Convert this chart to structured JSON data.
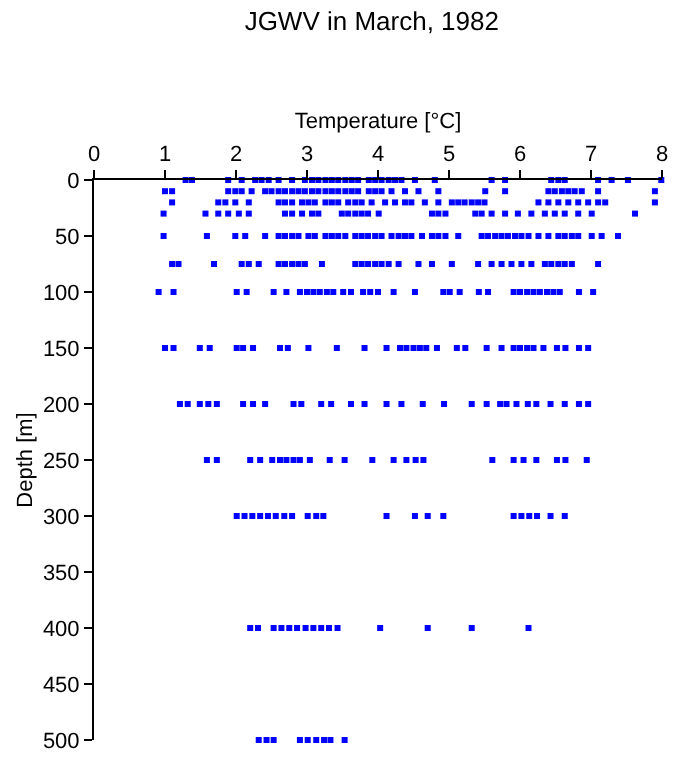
{
  "chart_data": {
    "type": "scatter",
    "title": "JGWV in March, 1982",
    "xlabel": "Temperature [°C]",
    "ylabel": "Depth [m]",
    "xlim": [
      0,
      8
    ],
    "xticks": [
      0,
      1,
      2,
      3,
      4,
      5,
      6,
      7,
      8
    ],
    "ylim": [
      500,
      0
    ],
    "yticks": [
      0,
      50,
      100,
      150,
      200,
      250,
      300,
      350,
      400,
      450,
      500
    ],
    "grid": false,
    "marker": "square",
    "series": [
      {
        "color": "#0000ff",
        "x": [
          1.29,
          1.38,
          1.89,
          2.08,
          2.27,
          2.36,
          2.46,
          2.6,
          2.79,
          2.97,
          3.07,
          3.16,
          3.26,
          3.35,
          3.44,
          3.54,
          3.63,
          3.72,
          3.87,
          3.96,
          4.05,
          4.15,
          4.24,
          4.33,
          4.52,
          4.8,
          5.6,
          5.79,
          6.44,
          6.54,
          6.63,
          7.1,
          7.29,
          7.52,
          7.99
        ],
        "values": [
          0,
          0,
          0,
          0,
          0,
          0,
          0,
          0,
          0,
          0,
          0,
          0,
          0,
          0,
          0,
          0,
          0,
          0,
          0,
          0,
          0,
          0,
          0,
          0,
          0,
          0,
          0,
          0,
          0,
          0,
          0,
          0,
          0,
          0,
          0
        ]
      },
      {
        "color": "#0000ff",
        "x": [
          1.0,
          1.1,
          1.89,
          1.99,
          2.08,
          2.22,
          2.41,
          2.5,
          2.6,
          2.69,
          2.79,
          2.88,
          2.97,
          3.07,
          3.16,
          3.26,
          3.35,
          3.44,
          3.54,
          3.63,
          3.72,
          3.87,
          3.96,
          4.05,
          4.19,
          4.38,
          4.57,
          4.85,
          5.51,
          5.79,
          6.4,
          6.49,
          6.59,
          6.68,
          6.77,
          6.87,
          7.1,
          7.9
        ],
        "values": [
          10,
          10,
          10,
          10,
          10,
          10,
          10,
          10,
          10,
          10,
          10,
          10,
          10,
          10,
          10,
          10,
          10,
          10,
          10,
          10,
          10,
          10,
          10,
          10,
          10,
          10,
          10,
          10,
          10,
          10,
          10,
          10,
          10,
          10,
          10,
          10,
          10,
          10
        ]
      },
      {
        "color": "#0000ff",
        "x": [
          1.1,
          1.75,
          1.85,
          1.99,
          2.18,
          2.6,
          2.69,
          2.79,
          2.93,
          3.02,
          3.11,
          3.26,
          3.35,
          3.44,
          3.58,
          3.68,
          3.77,
          3.91,
          4.1,
          4.24,
          4.38,
          4.47,
          4.66,
          4.85,
          5.04,
          5.13,
          5.22,
          5.32,
          5.41,
          5.5,
          6.26,
          6.4,
          6.54,
          6.68,
          6.82,
          6.96,
          7.1,
          7.2,
          7.9
        ],
        "values": [
          20,
          20,
          20,
          20,
          20,
          20,
          20,
          20,
          20,
          20,
          20,
          20,
          20,
          20,
          20,
          20,
          20,
          20,
          20,
          20,
          20,
          20,
          20,
          20,
          20,
          20,
          20,
          20,
          20,
          20,
          20,
          20,
          20,
          20,
          20,
          20,
          20,
          20,
          20
        ]
      },
      {
        "color": "#0000ff",
        "x": [
          0.98,
          1.57,
          1.75,
          1.89,
          2.04,
          2.18,
          2.69,
          2.79,
          2.93,
          3.07,
          3.16,
          3.49,
          3.58,
          3.68,
          3.77,
          3.86,
          4.01,
          4.76,
          4.85,
          4.95,
          5.37,
          5.46,
          5.6,
          5.79,
          5.97,
          6.16,
          6.35,
          6.49,
          6.63,
          6.82,
          7.01,
          7.62
        ],
        "values": [
          30,
          30,
          30,
          30,
          30,
          30,
          30,
          30,
          30,
          30,
          30,
          30,
          30,
          30,
          30,
          30,
          30,
          30,
          30,
          30,
          30,
          30,
          30,
          30,
          30,
          30,
          30,
          30,
          30,
          30,
          30,
          30
        ]
      },
      {
        "color": "#0000ff",
        "x": [
          0.98,
          1.59,
          1.99,
          2.13,
          2.41,
          2.6,
          2.69,
          2.79,
          2.88,
          3.02,
          3.11,
          3.26,
          3.35,
          3.44,
          3.54,
          3.68,
          3.77,
          3.86,
          3.96,
          4.05,
          4.19,
          4.29,
          4.38,
          4.47,
          4.62,
          4.76,
          4.85,
          4.95,
          5.13,
          5.46,
          5.55,
          5.65,
          5.74,
          5.83,
          5.93,
          6.02,
          6.12,
          6.26,
          6.4,
          6.54,
          6.63,
          6.73,
          6.82,
          7.01,
          7.15,
          7.38
        ],
        "values": [
          50,
          50,
          50,
          50,
          50,
          50,
          50,
          50,
          50,
          50,
          50,
          50,
          50,
          50,
          50,
          50,
          50,
          50,
          50,
          50,
          50,
          50,
          50,
          50,
          50,
          50,
          50,
          50,
          50,
          50,
          50,
          50,
          50,
          50,
          50,
          50,
          50,
          50,
          50,
          50,
          50,
          50,
          50,
          50,
          50,
          50
        ]
      },
      {
        "color": "#0000ff",
        "x": [
          1.1,
          1.19,
          1.69,
          2.08,
          2.18,
          2.32,
          2.6,
          2.69,
          2.79,
          2.88,
          2.97,
          3.21,
          3.68,
          3.77,
          3.86,
          3.96,
          4.05,
          4.15,
          4.29,
          4.57,
          4.76,
          5.04,
          5.41,
          5.6,
          5.74,
          5.88,
          6.02,
          6.16,
          6.35,
          6.44,
          6.54,
          6.63,
          6.73,
          7.1
        ],
        "values": [
          75,
          75,
          75,
          75,
          75,
          75,
          75,
          75,
          75,
          75,
          75,
          75,
          75,
          75,
          75,
          75,
          75,
          75,
          75,
          75,
          75,
          75,
          75,
          75,
          75,
          75,
          75,
          75,
          75,
          75,
          75,
          75,
          75,
          75
        ]
      },
      {
        "color": "#0000ff",
        "x": [
          0.91,
          1.12,
          2.01,
          2.15,
          2.53,
          2.71,
          2.9,
          3.0,
          3.09,
          3.18,
          3.28,
          3.37,
          3.51,
          3.62,
          3.79,
          3.89,
          4.0,
          4.22,
          4.52,
          4.92,
          5.01,
          5.15,
          5.42,
          5.55,
          5.91,
          6.0,
          6.1,
          6.19,
          6.28,
          6.38,
          6.47,
          6.56,
          6.83,
          7.03
        ],
        "values": [
          100,
          100,
          100,
          100,
          100,
          100,
          100,
          100,
          100,
          100,
          100,
          100,
          100,
          100,
          100,
          100,
          100,
          100,
          100,
          100,
          100,
          100,
          100,
          100,
          100,
          100,
          100,
          100,
          100,
          100,
          100,
          100,
          100,
          100
        ]
      },
      {
        "color": "#0000ff",
        "x": [
          1.0,
          1.12,
          1.49,
          1.63,
          2.01,
          2.1,
          2.24,
          2.62,
          2.73,
          3.02,
          3.42,
          3.81,
          4.12,
          4.31,
          4.4,
          4.5,
          4.59,
          4.68,
          4.83,
          5.11,
          5.23,
          5.53,
          5.74,
          5.91,
          6.0,
          6.1,
          6.19,
          6.33,
          6.52,
          6.64,
          6.83,
          6.96
        ],
        "values": [
          150,
          150,
          150,
          150,
          150,
          150,
          150,
          150,
          150,
          150,
          150,
          150,
          150,
          150,
          150,
          150,
          150,
          150,
          150,
          150,
          150,
          150,
          150,
          150,
          150,
          150,
          150,
          150,
          150,
          150,
          150,
          150
        ]
      },
      {
        "color": "#0000ff",
        "x": [
          1.21,
          1.32,
          1.49,
          1.61,
          1.73,
          2.1,
          2.24,
          2.41,
          2.81,
          2.92,
          3.2,
          3.34,
          3.62,
          3.81,
          4.12,
          4.33,
          4.63,
          4.93,
          5.32,
          5.53,
          5.72,
          5.81,
          5.95,
          6.11,
          6.23,
          6.43,
          6.63,
          6.83,
          6.96
        ],
        "values": [
          200,
          200,
          200,
          200,
          200,
          200,
          200,
          200,
          200,
          200,
          200,
          200,
          200,
          200,
          200,
          200,
          200,
          200,
          200,
          200,
          200,
          200,
          200,
          200,
          200,
          200,
          200,
          200,
          200
        ]
      },
      {
        "color": "#0000ff",
        "x": [
          1.59,
          1.73,
          2.2,
          2.34,
          2.51,
          2.62,
          2.71,
          2.81,
          2.9,
          3.04,
          3.32,
          3.53,
          3.92,
          4.22,
          4.4,
          4.53,
          4.64,
          5.61,
          5.91,
          6.05,
          6.23,
          6.52,
          6.64,
          6.94
        ],
        "values": [
          250,
          250,
          250,
          250,
          250,
          250,
          250,
          250,
          250,
          250,
          250,
          250,
          250,
          250,
          250,
          250,
          250,
          250,
          250,
          250,
          250,
          250,
          250,
          250
        ]
      },
      {
        "color": "#0000ff",
        "x": [
          2.01,
          2.12,
          2.23,
          2.34,
          2.45,
          2.56,
          2.68,
          2.79,
          3.01,
          3.13,
          3.23,
          4.12,
          4.52,
          4.7,
          4.92,
          5.91,
          6.02,
          6.13,
          6.24,
          6.43,
          6.63
        ],
        "values": [
          300,
          300,
          300,
          300,
          300,
          300,
          300,
          300,
          300,
          300,
          300,
          300,
          300,
          300,
          300,
          300,
          300,
          300,
          300,
          300,
          300
        ]
      },
      {
        "color": "#0000ff",
        "x": [
          2.2,
          2.31,
          2.53,
          2.64,
          2.75,
          2.86,
          2.98,
          3.09,
          3.2,
          3.31,
          3.43,
          4.03,
          4.7,
          5.32,
          6.12
        ],
        "values": [
          400,
          400,
          400,
          400,
          400,
          400,
          400,
          400,
          400,
          400,
          400,
          400,
          400,
          400,
          400
        ]
      },
      {
        "color": "#0000ff",
        "x": [
          2.32,
          2.43,
          2.53,
          2.9,
          3.01,
          3.13,
          3.24,
          3.33,
          3.53
        ],
        "values": [
          500,
          500,
          500,
          500,
          500,
          500,
          500,
          500,
          500
        ]
      }
    ]
  }
}
